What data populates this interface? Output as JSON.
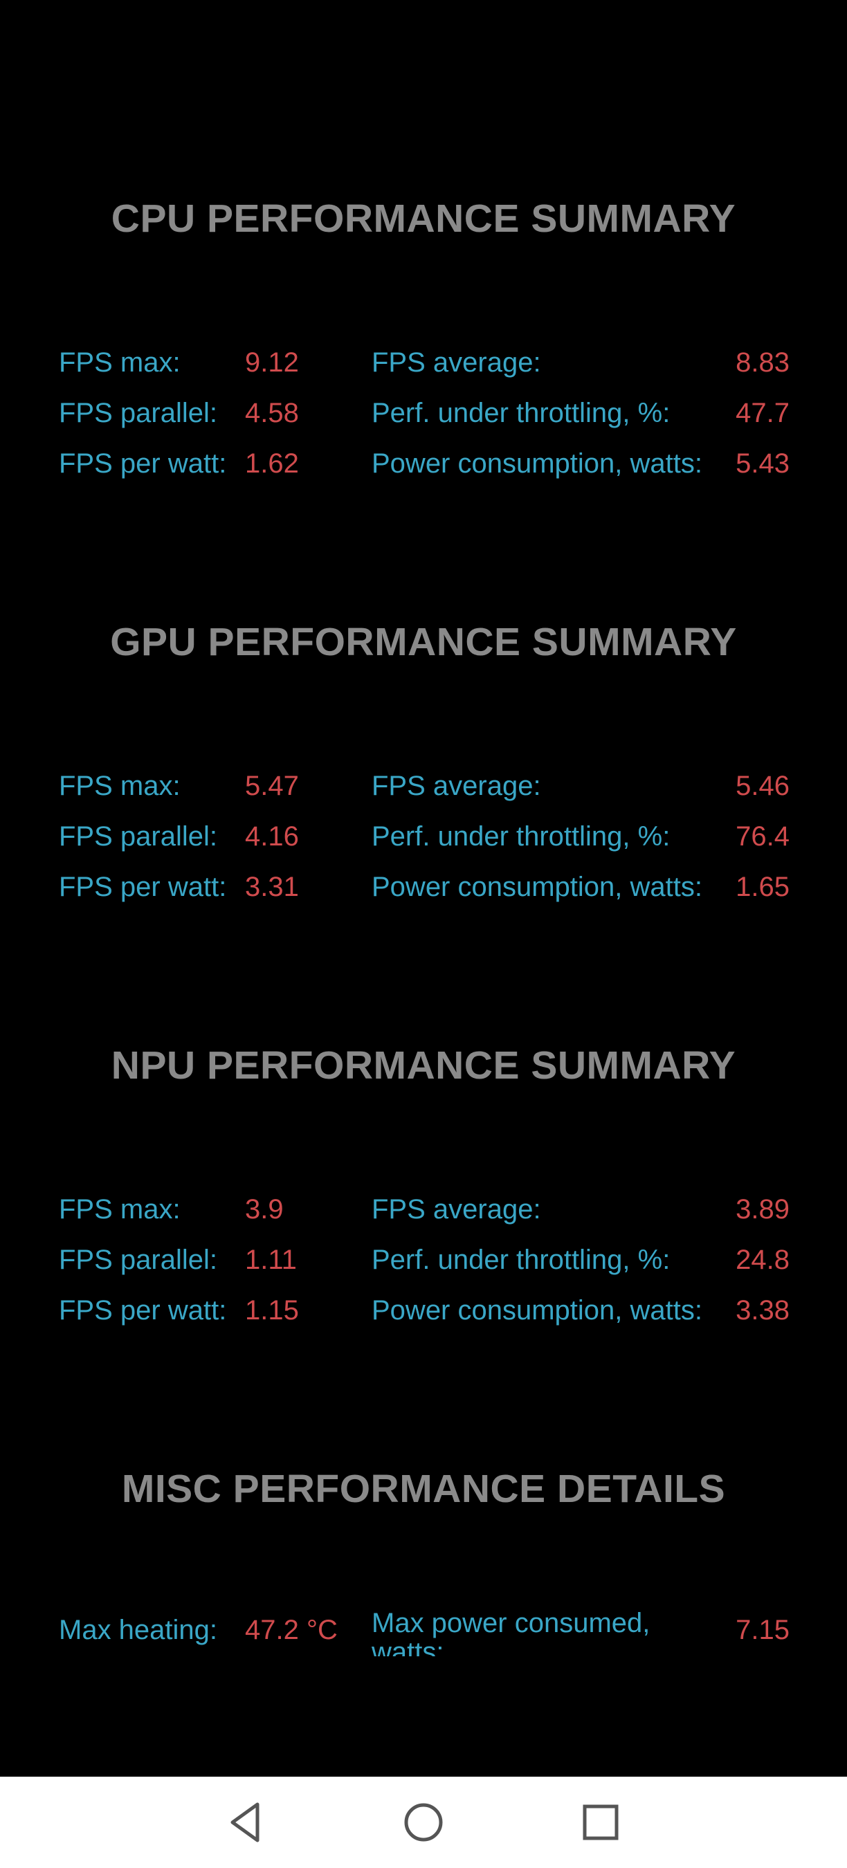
{
  "sections": [
    {
      "title": "CPU PERFORMANCE SUMMARY",
      "rows": [
        {
          "label1": "FPS max:",
          "value1": "9.12",
          "label2": "FPS average:",
          "value2": "8.83"
        },
        {
          "label1": "FPS parallel:",
          "value1": "4.58",
          "label2": "Perf. under throttling, %:",
          "value2": "47.7"
        },
        {
          "label1": "FPS per watt:",
          "value1": "1.62",
          "label2": "Power consumption, watts:",
          "value2": "5.43"
        }
      ]
    },
    {
      "title": "GPU PERFORMANCE SUMMARY",
      "rows": [
        {
          "label1": "FPS max:",
          "value1": "5.47",
          "label2": "FPS average:",
          "value2": "5.46"
        },
        {
          "label1": "FPS parallel:",
          "value1": "4.16",
          "label2": "Perf. under throttling, %:",
          "value2": "76.4"
        },
        {
          "label1": "FPS per watt:",
          "value1": "3.31",
          "label2": "Power consumption, watts:",
          "value2": "1.65"
        }
      ]
    },
    {
      "title": "NPU PERFORMANCE SUMMARY",
      "rows": [
        {
          "label1": "FPS max:",
          "value1": "3.9",
          "label2": "FPS average:",
          "value2": "3.89"
        },
        {
          "label1": "FPS parallel:",
          "value1": "1.11",
          "label2": "Perf. under throttling, %:",
          "value2": "24.8"
        },
        {
          "label1": "FPS per watt:",
          "value1": "1.15",
          "label2": "Power consumption, watts:",
          "value2": "3.38"
        }
      ]
    }
  ],
  "misc": {
    "title": "MISC PERFORMANCE DETAILS",
    "label1": "Max heating:",
    "value1": "47.2 °C",
    "label2": "Max power consumed, watts:",
    "value2": "7.15"
  },
  "navbar": {
    "buttons": [
      "back-icon",
      "home-icon",
      "recents-icon"
    ]
  },
  "colors": {
    "background": "#000000",
    "title": "#8a8a8a",
    "label": "#3aa7c7",
    "value": "#d04b4d",
    "navbar": "#ffffff"
  }
}
